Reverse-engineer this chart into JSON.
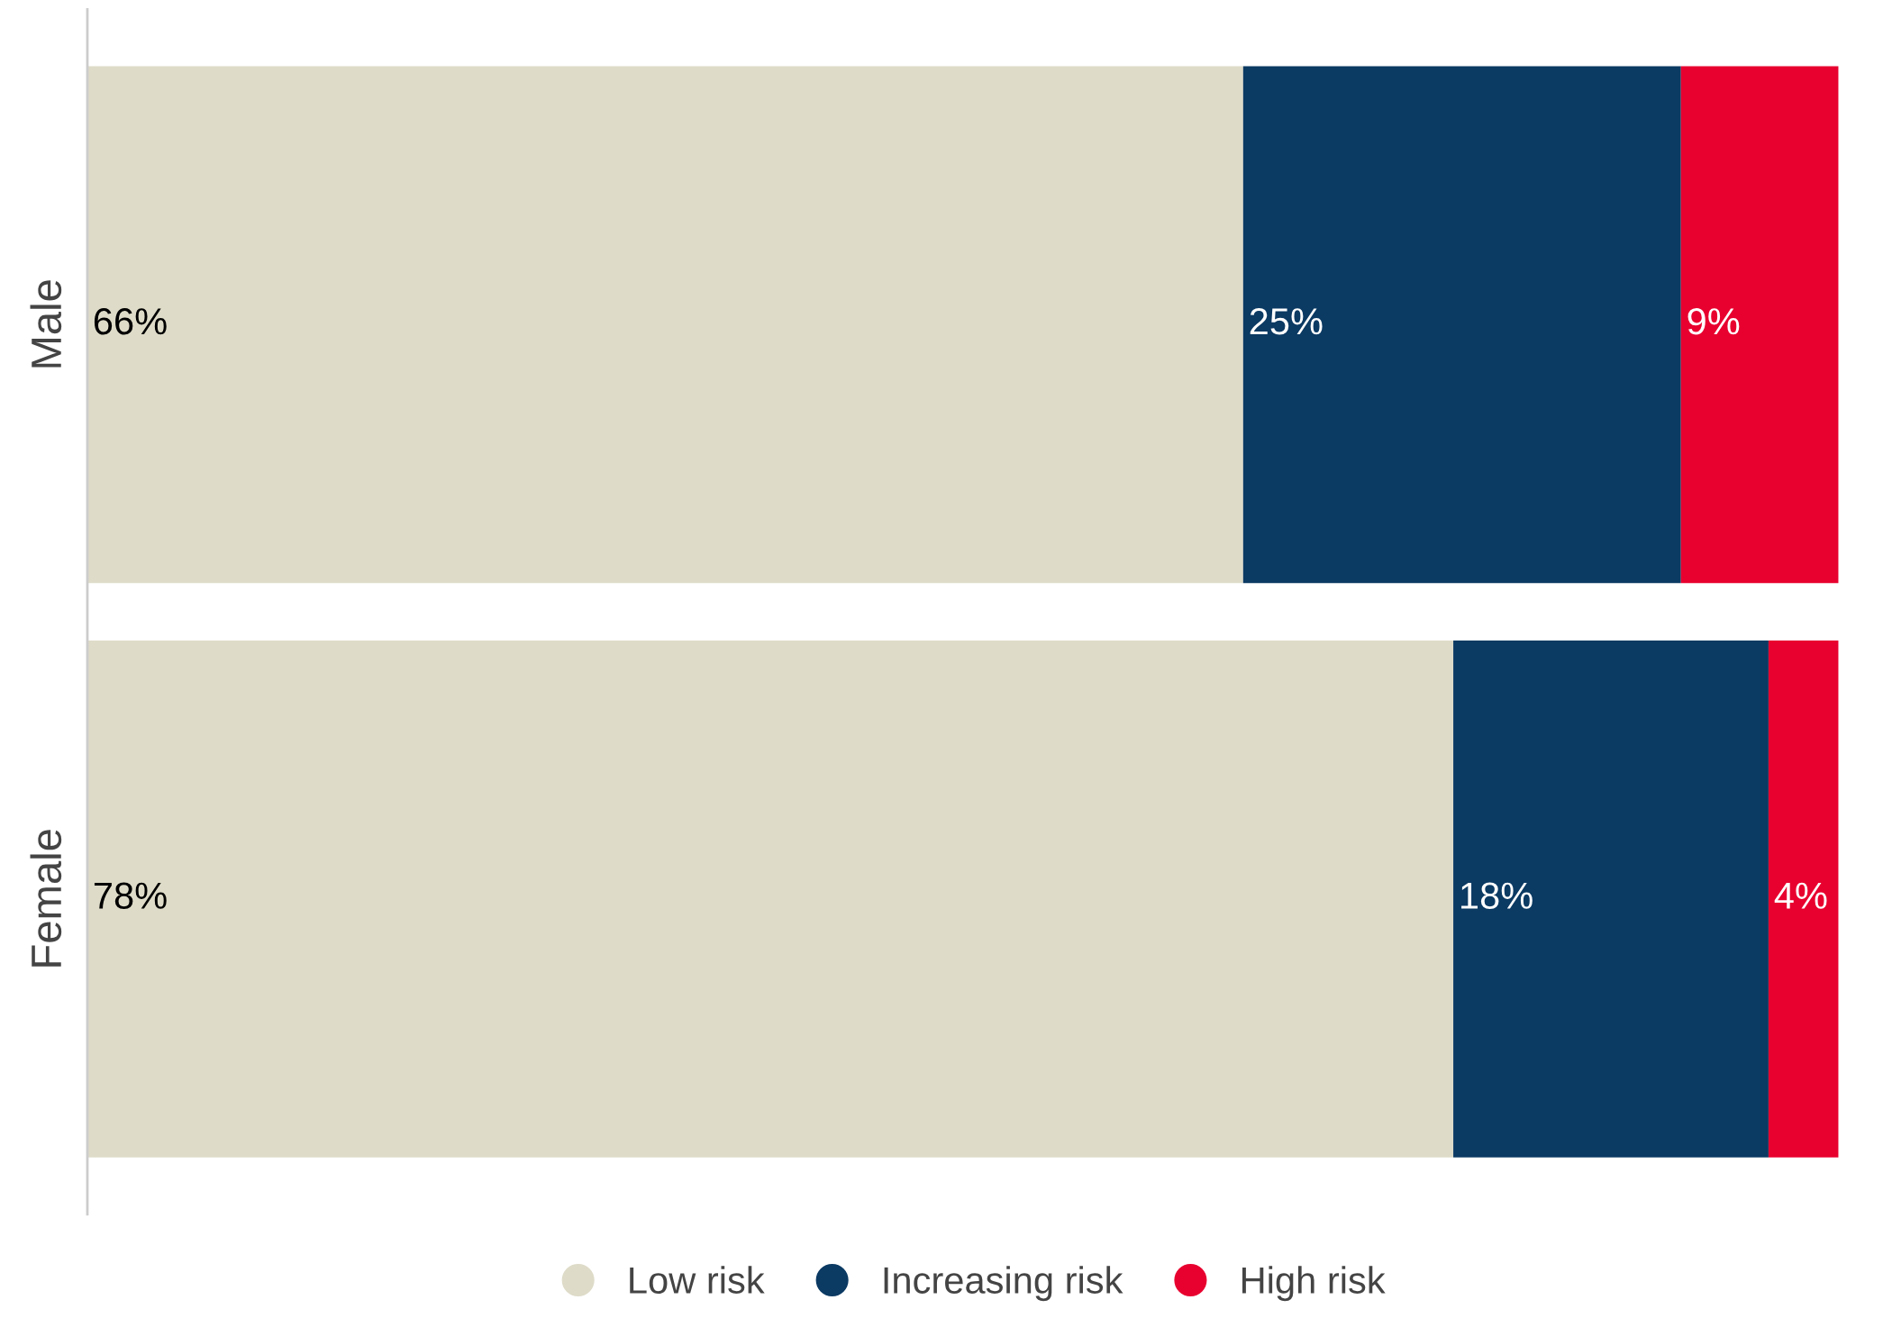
{
  "chart_data": {
    "type": "bar",
    "orientation": "horizontal",
    "stacked": true,
    "legend": "bottom",
    "grid": false,
    "categories": [
      "Male",
      "Female"
    ],
    "series": [
      {
        "name": "Low risk",
        "color": "#dedbc8",
        "values": [
          66,
          78
        ],
        "value_labels": [
          "66%",
          "78%"
        ]
      },
      {
        "name": "Increasing risk",
        "color": "#0b3a63",
        "values": [
          25,
          18
        ],
        "value_labels": [
          "25%",
          "18%"
        ]
      },
      {
        "name": "High risk",
        "color": "#e8002f",
        "values": [
          9,
          4
        ],
        "value_labels": [
          "9%",
          "4%"
        ]
      }
    ]
  }
}
